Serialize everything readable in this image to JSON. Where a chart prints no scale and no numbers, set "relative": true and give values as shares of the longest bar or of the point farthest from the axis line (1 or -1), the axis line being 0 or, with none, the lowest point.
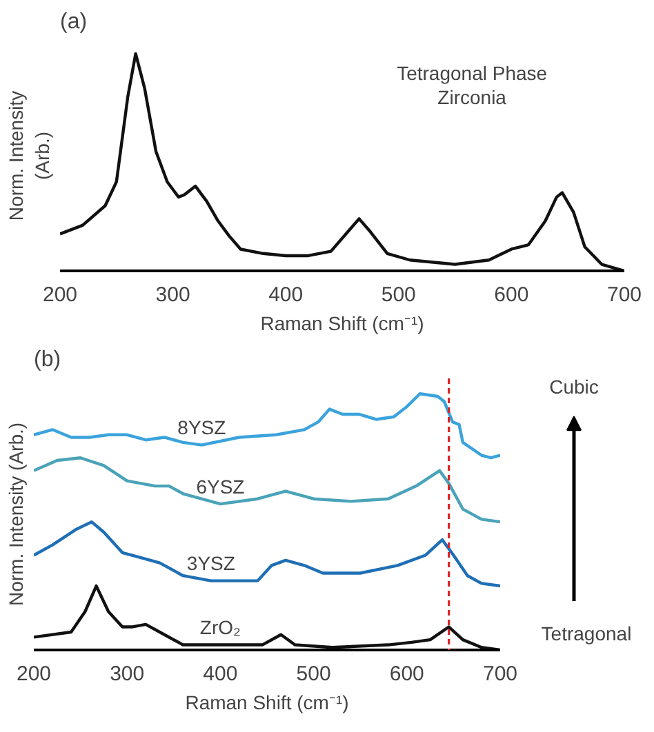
{
  "chart_data": [
    {
      "type": "line",
      "title": "(a)",
      "xlabel": "Raman Shift (cm⁻¹)",
      "ylabel": "Norm. Intensity\n(Arb.)",
      "relative": true,
      "xlim": [
        200,
        700
      ],
      "xticks": [
        200,
        300,
        400,
        500,
        600,
        700
      ],
      "grid": false,
      "marker": "none",
      "line_style": "solid",
      "annotations": [
        "Tetragonal Phase",
        "Zirconia"
      ],
      "x": [
        200,
        220,
        240,
        250,
        260,
        267,
        275,
        285,
        295,
        305,
        310,
        320,
        330,
        340,
        350,
        360,
        380,
        400,
        420,
        440,
        455,
        465,
        475,
        490,
        510,
        550,
        580,
        600,
        615,
        630,
        640,
        645,
        655,
        665,
        680,
        700
      ],
      "series": [
        {
          "color": "#111111",
          "values": [
            0.17,
            0.21,
            0.3,
            0.41,
            0.8,
            1.0,
            0.84,
            0.55,
            0.41,
            0.34,
            0.35,
            0.39,
            0.32,
            0.23,
            0.16,
            0.1,
            0.08,
            0.07,
            0.07,
            0.09,
            0.18,
            0.24,
            0.18,
            0.08,
            0.05,
            0.03,
            0.05,
            0.1,
            0.12,
            0.23,
            0.34,
            0.36,
            0.27,
            0.11,
            0.03,
            0.0
          ]
        }
      ]
    },
    {
      "type": "line",
      "title": "(b)",
      "xlabel": "Raman Shift (cm⁻¹)",
      "ylabel": "Norm. Intensity (Arb.)",
      "relative": true,
      "xlim": [
        200,
        700
      ],
      "xticks": [
        200,
        300,
        400,
        500,
        600,
        700
      ],
      "grid": false,
      "marker": "none",
      "line_style": "solid",
      "annotations": [
        "Cubic",
        "Tetragonal"
      ],
      "ref_lines": [
        {
          "axis": "x",
          "value": 645,
          "color": "#e02020",
          "line_style": "dashed"
        }
      ],
      "series": [
        {
          "name": "8YSZ",
          "color": "#3ba3dc",
          "x": [
            200,
            220,
            240,
            260,
            280,
            300,
            320,
            340,
            360,
            380,
            420,
            460,
            490,
            505,
            517,
            531,
            549,
            567,
            586,
            600,
            614,
            633,
            640,
            649,
            656,
            660,
            680,
            690,
            700
          ],
          "values": [
            0.84,
            0.86,
            0.83,
            0.83,
            0.84,
            0.84,
            0.82,
            0.83,
            0.81,
            0.8,
            0.83,
            0.84,
            0.86,
            0.89,
            0.94,
            0.92,
            0.92,
            0.9,
            0.91,
            0.95,
            1.0,
            0.99,
            0.97,
            0.89,
            0.88,
            0.81,
            0.76,
            0.75,
            0.76
          ]
        },
        {
          "name": "6YSZ",
          "color": "#4aa3b8",
          "x": [
            200,
            225,
            250,
            275,
            300,
            330,
            345,
            360,
            400,
            440,
            470,
            500,
            540,
            580,
            610,
            635,
            645,
            660,
            680,
            700
          ],
          "values": [
            0.7,
            0.74,
            0.75,
            0.72,
            0.66,
            0.64,
            0.64,
            0.61,
            0.57,
            0.59,
            0.62,
            0.59,
            0.58,
            0.59,
            0.64,
            0.7,
            0.65,
            0.55,
            0.51,
            0.5
          ]
        },
        {
          "name": "3YSZ",
          "color": "#1f6fb5",
          "x": [
            200,
            220,
            245,
            262,
            275,
            295,
            315,
            335,
            360,
            390,
            440,
            455,
            470,
            490,
            510,
            550,
            590,
            620,
            638,
            650,
            665,
            680,
            700
          ],
          "values": [
            0.37,
            0.41,
            0.47,
            0.5,
            0.46,
            0.38,
            0.36,
            0.34,
            0.29,
            0.27,
            0.27,
            0.33,
            0.35,
            0.33,
            0.3,
            0.3,
            0.33,
            0.37,
            0.43,
            0.37,
            0.29,
            0.26,
            0.25
          ]
        },
        {
          "name": "ZrO₂",
          "color": "#111111",
          "x": [
            200,
            240,
            255,
            267,
            280,
            295,
            305,
            320,
            340,
            360,
            400,
            445,
            465,
            480,
            520,
            580,
            605,
            625,
            645,
            660,
            680,
            700
          ],
          "values": [
            0.05,
            0.07,
            0.15,
            0.25,
            0.15,
            0.09,
            0.09,
            0.1,
            0.06,
            0.02,
            0.02,
            0.02,
            0.06,
            0.02,
            0.01,
            0.02,
            0.03,
            0.04,
            0.09,
            0.04,
            0.01,
            0.0
          ]
        }
      ]
    }
  ]
}
